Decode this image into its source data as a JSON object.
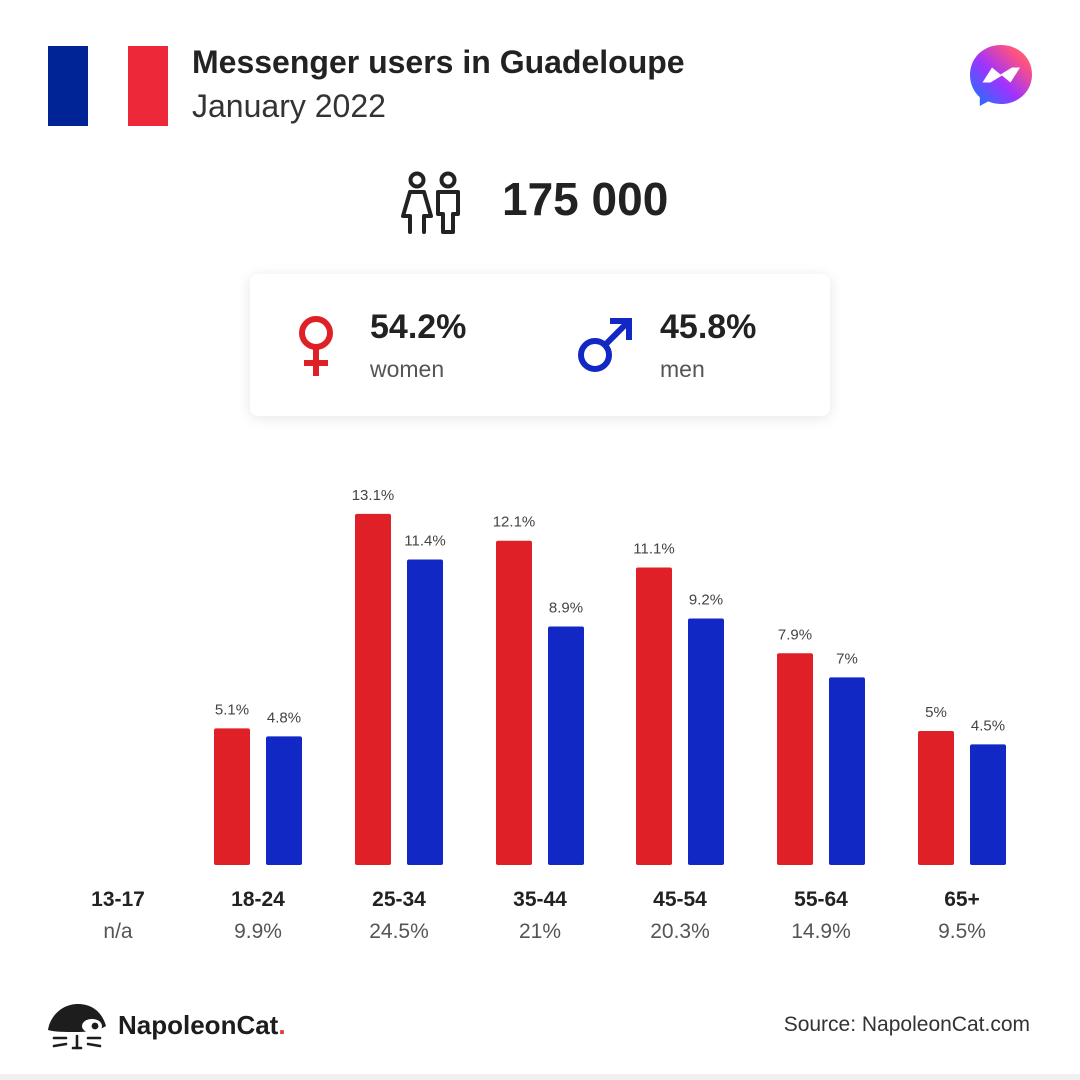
{
  "header": {
    "title": "Messenger users in Guadeloupe",
    "subtitle": "January 2022",
    "flag_colors": [
      "#002395",
      "#ffffff",
      "#ED2939"
    ],
    "flag_icon": "france-flag-icon",
    "app_icon": "messenger-icon"
  },
  "summary": {
    "icon": "people-icon",
    "total_users": "175 000"
  },
  "gender": {
    "women": {
      "value": "54.2%",
      "label": "women",
      "icon": "female-symbol-icon",
      "color": "#E02027"
    },
    "men": {
      "value": "45.8%",
      "label": "men",
      "icon": "male-symbol-icon",
      "color": "#1228C5"
    }
  },
  "chart_data": {
    "type": "bar",
    "categories": [
      "13-17",
      "18-24",
      "25-34",
      "35-44",
      "45-54",
      "55-64",
      "65+"
    ],
    "category_totals": [
      "n/a",
      "9.9%",
      "24.5%",
      "21%",
      "20.3%",
      "14.9%",
      "9.5%"
    ],
    "series": [
      {
        "name": "women",
        "color": "#E02027",
        "values": [
          null,
          5.1,
          13.1,
          12.1,
          11.1,
          7.9,
          5.0
        ],
        "labels": [
          "",
          "5.1%",
          "13.1%",
          "12.1%",
          "11.1%",
          "7.9%",
          "5%"
        ]
      },
      {
        "name": "men",
        "color": "#1228C5",
        "values": [
          null,
          4.8,
          11.4,
          8.9,
          9.2,
          7.0,
          4.5
        ],
        "labels": [
          "",
          "4.8%",
          "11.4%",
          "8.9%",
          "9.2%",
          "7%",
          "4.5%"
        ]
      }
    ],
    "ylim": [
      0,
      13.1
    ],
    "grid": false,
    "legend": "none"
  },
  "footer": {
    "brand": "NapoleonCat",
    "brand_dot": ".",
    "brand_icon": "napoleoncat-logo-icon",
    "source": "Source: NapoleonCat.com"
  }
}
